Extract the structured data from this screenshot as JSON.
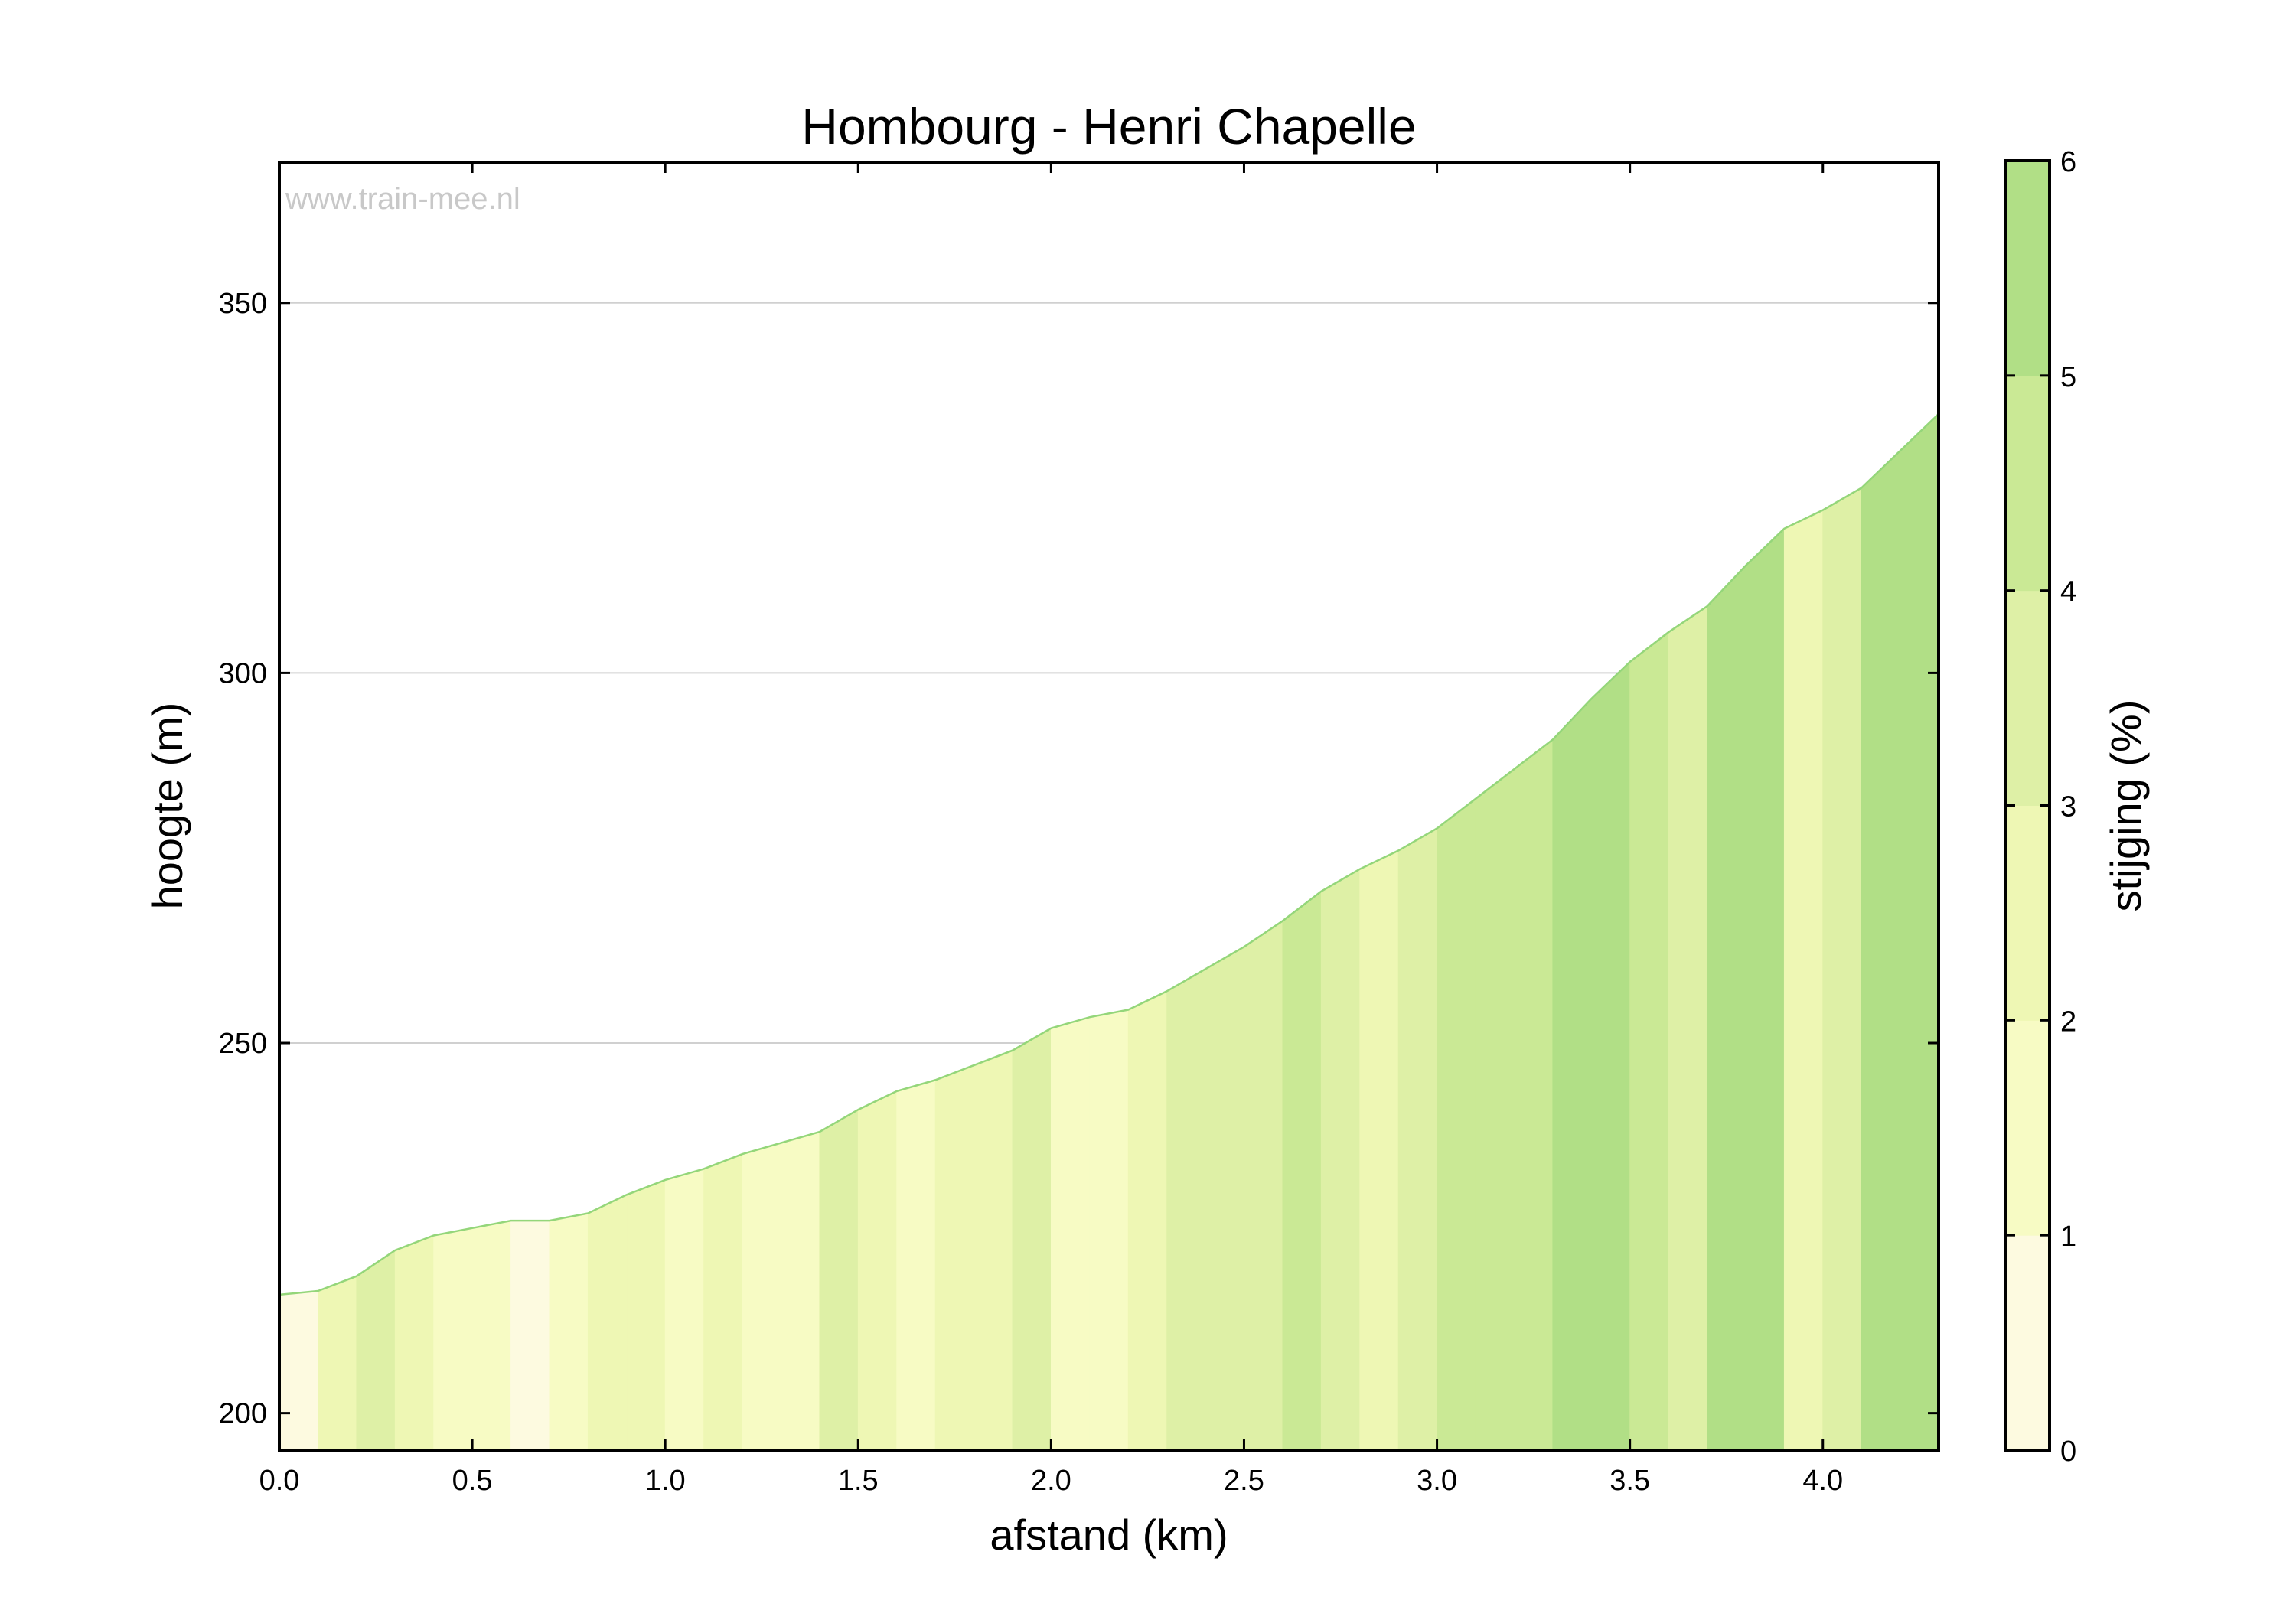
{
  "chart_data": {
    "type": "area",
    "title": "Hombourg - Henri Chapelle",
    "xlabel": "afstand (km)",
    "ylabel": "hoogte (m)",
    "colorbar_label": "stijging (%)",
    "watermark": "www.train-mee.nl",
    "xlim": [
      0,
      4.3
    ],
    "ylim": [
      195,
      369
    ],
    "xticks": [
      0.0,
      0.5,
      1.0,
      1.5,
      2.0,
      2.5,
      3.0,
      3.5,
      4.0
    ],
    "xtick_labels": [
      "0.0",
      "0.5",
      "1.0",
      "1.5",
      "2.0",
      "2.5",
      "3.0",
      "3.5",
      "4.0"
    ],
    "yticks": [
      200,
      250,
      300,
      350
    ],
    "ytick_labels": [
      "200",
      "250",
      "300",
      "350"
    ],
    "colorbar_ticks": [
      0,
      1,
      2,
      3,
      4,
      5,
      6
    ],
    "colorbar_tick_labels": [
      "0",
      "1",
      "2",
      "3",
      "4",
      "5",
      "6"
    ],
    "grid": "horizontal",
    "x": [
      0.0,
      0.1,
      0.2,
      0.3,
      0.4,
      0.5,
      0.6,
      0.7,
      0.8,
      0.9,
      1.0,
      1.1,
      1.2,
      1.3,
      1.4,
      1.5,
      1.6,
      1.7,
      1.8,
      1.9,
      2.0,
      2.1,
      2.2,
      2.3,
      2.4,
      2.5,
      2.6,
      2.7,
      2.8,
      2.9,
      3.0,
      3.1,
      3.2,
      3.3,
      3.4,
      3.5,
      3.6,
      3.7,
      3.8,
      3.9,
      4.0,
      4.1,
      4.2,
      4.3
    ],
    "elevation": [
      216,
      216.5,
      218.5,
      222,
      224,
      225,
      226,
      226,
      227,
      229.5,
      231.5,
      233,
      235,
      236.5,
      238,
      241,
      243.5,
      245,
      247,
      249,
      252,
      253.5,
      254.5,
      257,
      260,
      263,
      266.5,
      270.5,
      273.5,
      276,
      279,
      283,
      287,
      291,
      296.5,
      301.5,
      305.5,
      309,
      314.5,
      319.5,
      322,
      325,
      330,
      335
    ],
    "gradient_pct": [
      0.5,
      2.0,
      3.5,
      2.0,
      1.0,
      1.0,
      0.0,
      1.0,
      2.5,
      2.0,
      1.5,
      2.0,
      1.5,
      1.5,
      3.0,
      2.5,
      1.5,
      2.0,
      2.0,
      3.0,
      1.5,
      1.0,
      2.5,
      3.0,
      3.0,
      3.5,
      4.0,
      3.0,
      2.5,
      3.0,
      4.0,
      4.0,
      4.0,
      5.5,
      5.0,
      4.0,
      3.5,
      5.5,
      5.0,
      2.5,
      3.0,
      5.0,
      5.0
    ],
    "colorbar_colors": [
      "#fdfae0",
      "#f7fbc4",
      "#eef7b4",
      "#def0a6",
      "#cae995",
      "#b1df86"
    ]
  }
}
